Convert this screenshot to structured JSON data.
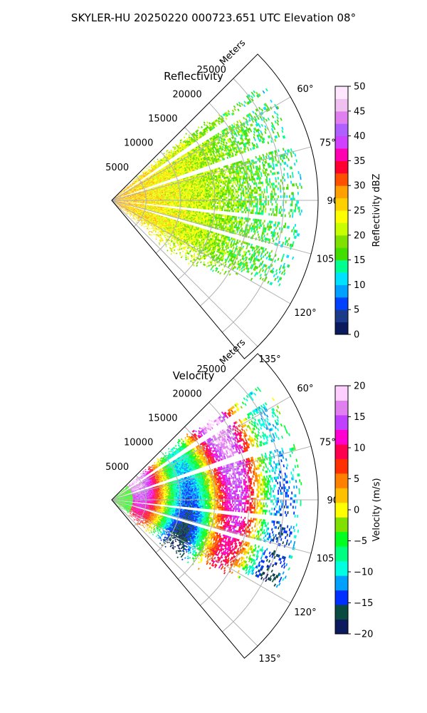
{
  "figure_title": "SKYLER-HU  20250220  000723.651 UTC Elevation 08°",
  "colors": {
    "gate_grid": "#b0b0b0",
    "axes": "#000000"
  },
  "chart_data": [
    {
      "type": "polar-ppi",
      "title": "Reflectivity",
      "field": "reflectivity",
      "azimuth_range_deg": [
        45,
        140
      ],
      "range_max_m": 30000,
      "radial_label": "Meters",
      "range_ticks": [
        5000,
        10000,
        15000,
        20000,
        25000
      ],
      "range_tick_labels": [
        "5000",
        "10000",
        "15000",
        "20000",
        "25000"
      ],
      "azimuth_ticks": [
        60,
        75,
        90,
        105,
        120,
        135
      ],
      "azimuth_tick_labels": [
        "60°",
        "75°",
        "90°",
        "105°",
        "120°",
        "135°"
      ],
      "grid": true,
      "blocked_azimuths_deg": [
        56,
        71,
        96,
        106
      ],
      "colorbar": {
        "label": "Reflectivity dBZ",
        "range": [
          0,
          50
        ],
        "ticks": [
          0,
          5,
          10,
          15,
          20,
          25,
          30,
          35,
          40,
          45,
          50
        ],
        "tick_labels": [
          "0",
          "5",
          "10",
          "15",
          "20",
          "25",
          "30",
          "35",
          "40",
          "45",
          "50"
        ],
        "colormap": [
          "#0b1a5c",
          "#1b3a8a",
          "#0040ff",
          "#00a0ff",
          "#00e0ff",
          "#00ff90",
          "#44dd00",
          "#80e000",
          "#c8ff00",
          "#ffff00",
          "#ffd000",
          "#ffa000",
          "#ff5000",
          "#ff0030",
          "#ff00b0",
          "#d040ff",
          "#b060ff",
          "#e080f0",
          "#f0c0f0",
          "#ffe8ff"
        ]
      },
      "data_summary": {
        "typical_dbz": [
          18,
          24
        ],
        "near_range_dbz": [
          25,
          30
        ]
      }
    },
    {
      "type": "polar-ppi",
      "title": "Velocity",
      "field": "velocity",
      "azimuth_range_deg": [
        45,
        140
      ],
      "range_max_m": 30000,
      "radial_label": "Meters",
      "range_ticks": [
        5000,
        10000,
        15000,
        20000,
        25000
      ],
      "range_tick_labels": [
        "5000",
        "10000",
        "15000",
        "20000",
        "25000"
      ],
      "azimuth_ticks": [
        60,
        75,
        90,
        105,
        120,
        135
      ],
      "azimuth_tick_labels": [
        "60°",
        "75°",
        "90°",
        "105°",
        "120°",
        "135°"
      ],
      "grid": true,
      "blocked_azimuths_deg": [
        56,
        71,
        96,
        106
      ],
      "colorbar": {
        "label": "Velocity (m/s)",
        "range": [
          -20,
          20
        ],
        "ticks": [
          -20,
          -15,
          -10,
          -5,
          0,
          5,
          10,
          15,
          20
        ],
        "tick_labels": [
          "−20",
          "−15",
          "−10",
          "−5",
          "0",
          "5",
          "10",
          "15",
          "20"
        ],
        "colormap": [
          "#0b1a5c",
          "#0a4a40",
          "#0030ff",
          "#00a0ff",
          "#00ffe0",
          "#00ff80",
          "#00ff20",
          "#80e000",
          "#ffff00",
          "#ffc000",
          "#ff8000",
          "#ff3000",
          "#ff0050",
          "#ff00d0",
          "#c040ff",
          "#e080f0",
          "#ffd0ff"
        ]
      },
      "data_summary": {
        "velocity_range_ms": [
          -12,
          14
        ]
      }
    }
  ]
}
